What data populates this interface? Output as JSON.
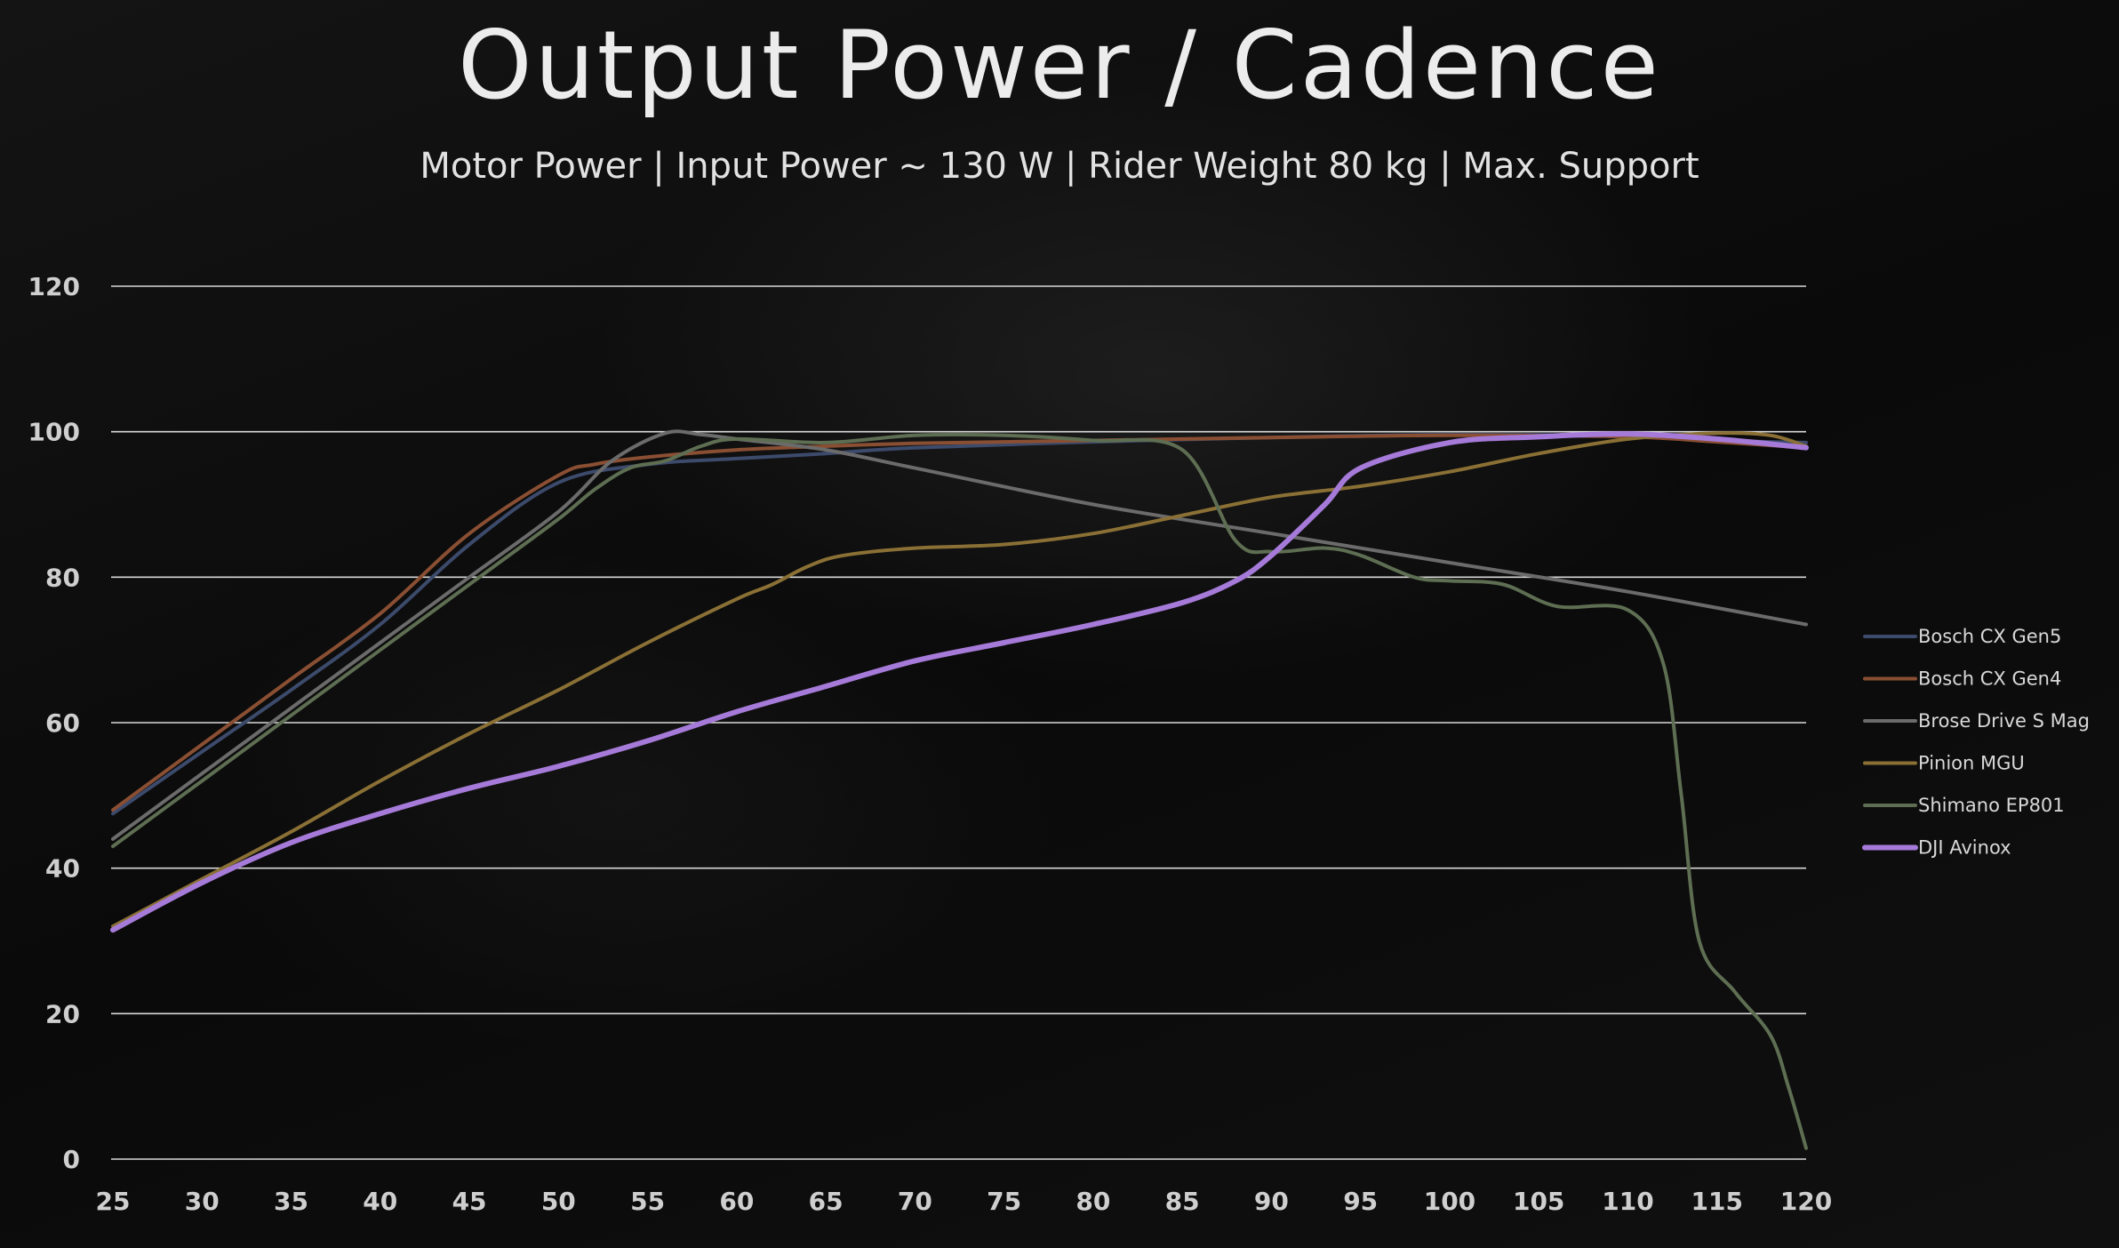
{
  "chart_data": {
    "type": "line",
    "title": "Output Power / Cadence",
    "subtitle": "Motor Power | Input Power ~ 130 W | Rider Weight 80 kg  |  Max. Support",
    "xlabel": "",
    "ylabel": "",
    "xlim": [
      25,
      120
    ],
    "ylim": [
      0,
      120
    ],
    "x_ticks": [
      25,
      30,
      35,
      40,
      45,
      50,
      55,
      60,
      65,
      70,
      75,
      80,
      85,
      90,
      95,
      100,
      105,
      110,
      115,
      120
    ],
    "y_ticks": [
      0,
      20,
      40,
      60,
      80,
      100,
      120
    ],
    "grid": "horizontal",
    "legend_position": "right",
    "series": [
      {
        "name": "Bosch CX Gen5",
        "color": "#3c4a6b",
        "points": [
          [
            25,
            47.5
          ],
          [
            30,
            56
          ],
          [
            35,
            64.5
          ],
          [
            40,
            73.5
          ],
          [
            45,
            84.5
          ],
          [
            50,
            93
          ],
          [
            55,
            95.5
          ],
          [
            60,
            96.3
          ],
          [
            65,
            97
          ],
          [
            70,
            97.8
          ],
          [
            80,
            98.6
          ],
          [
            90,
            99.2
          ],
          [
            100,
            99.6
          ],
          [
            110,
            99.4
          ],
          [
            115,
            98.8
          ],
          [
            120,
            98.5
          ]
        ]
      },
      {
        "name": "Bosch CX Gen4",
        "color": "#8a4f33",
        "points": [
          [
            25,
            48
          ],
          [
            30,
            57
          ],
          [
            35,
            66
          ],
          [
            40,
            75
          ],
          [
            45,
            86
          ],
          [
            50,
            94
          ],
          [
            52,
            95.5
          ],
          [
            55,
            96.5
          ],
          [
            60,
            97.5
          ],
          [
            65,
            98
          ],
          [
            70,
            98.4
          ],
          [
            80,
            98.8
          ],
          [
            90,
            99.2
          ],
          [
            100,
            99.5
          ],
          [
            110,
            99.3
          ],
          [
            115,
            98.6
          ],
          [
            120,
            97.8
          ]
        ]
      },
      {
        "name": "Brose Drive S Mag",
        "color": "#6b6b6b",
        "points": [
          [
            25,
            44
          ],
          [
            30,
            53
          ],
          [
            35,
            62
          ],
          [
            40,
            71
          ],
          [
            45,
            80
          ],
          [
            50,
            89
          ],
          [
            53,
            96
          ],
          [
            56,
            99.8
          ],
          [
            58,
            99.6
          ],
          [
            60,
            99
          ],
          [
            65,
            97.5
          ],
          [
            70,
            95
          ],
          [
            80,
            90
          ],
          [
            90,
            86
          ],
          [
            100,
            82
          ],
          [
            110,
            78
          ],
          [
            120,
            73.5
          ]
        ]
      },
      {
        "name": "Pinion MGU",
        "color": "#8a7035",
        "points": [
          [
            25,
            32
          ],
          [
            30,
            38.5
          ],
          [
            35,
            45
          ],
          [
            40,
            52
          ],
          [
            45,
            58.5
          ],
          [
            50,
            64.5
          ],
          [
            55,
            71
          ],
          [
            60,
            77
          ],
          [
            62,
            79
          ],
          [
            64,
            81.5
          ],
          [
            66,
            83
          ],
          [
            70,
            84
          ],
          [
            75,
            84.5
          ],
          [
            80,
            86
          ],
          [
            85,
            88.5
          ],
          [
            90,
            91
          ],
          [
            95,
            92.5
          ],
          [
            100,
            94.5
          ],
          [
            105,
            97
          ],
          [
            110,
            99
          ],
          [
            115,
            99.8
          ],
          [
            118,
            99.5
          ],
          [
            120,
            98
          ]
        ]
      },
      {
        "name": "Shimano EP801",
        "color": "#5e6e52",
        "points": [
          [
            25,
            43
          ],
          [
            30,
            52
          ],
          [
            35,
            61
          ],
          [
            40,
            70
          ],
          [
            45,
            79
          ],
          [
            50,
            88
          ],
          [
            52,
            92
          ],
          [
            54,
            95
          ],
          [
            56,
            96
          ],
          [
            58,
            98
          ],
          [
            60,
            99
          ],
          [
            65,
            98.5
          ],
          [
            70,
            99.5
          ],
          [
            75,
            99.5
          ],
          [
            80,
            98.8
          ],
          [
            85,
            97.5
          ],
          [
            88,
            85
          ],
          [
            90,
            83.5
          ],
          [
            93,
            84
          ],
          [
            95,
            83
          ],
          [
            98,
            80
          ],
          [
            100,
            79.5
          ],
          [
            103,
            79
          ],
          [
            106,
            76
          ],
          [
            110,
            75.5
          ],
          [
            112,
            68
          ],
          [
            113,
            50
          ],
          [
            114,
            30
          ],
          [
            116,
            23
          ],
          [
            118,
            17
          ],
          [
            119,
            10
          ],
          [
            120,
            1.5
          ]
        ]
      },
      {
        "name": "DJI Avinox",
        "color": "#a57ad8",
        "points": [
          [
            25,
            31.5
          ],
          [
            30,
            38
          ],
          [
            35,
            43.5
          ],
          [
            40,
            47.5
          ],
          [
            45,
            51
          ],
          [
            50,
            54
          ],
          [
            55,
            57.5
          ],
          [
            60,
            61.5
          ],
          [
            65,
            65
          ],
          [
            70,
            68.5
          ],
          [
            75,
            71
          ],
          [
            80,
            73.5
          ],
          [
            85,
            76.5
          ],
          [
            88,
            79.5
          ],
          [
            90,
            83
          ],
          [
            93,
            90
          ],
          [
            95,
            95
          ],
          [
            100,
            98.5
          ],
          [
            105,
            99.3
          ],
          [
            110,
            99.7
          ],
          [
            115,
            99
          ],
          [
            120,
            97.8
          ]
        ]
      }
    ]
  }
}
